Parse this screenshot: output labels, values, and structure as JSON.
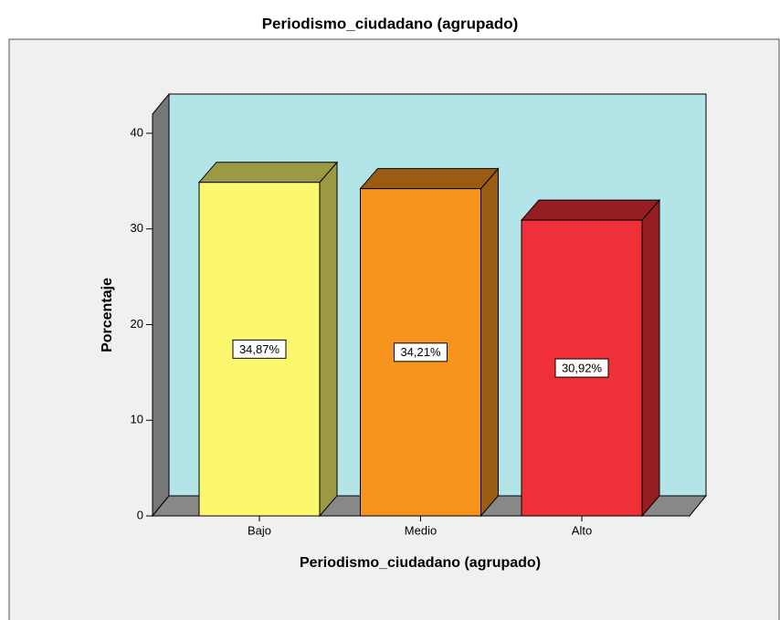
{
  "chart_data": {
    "type": "bar3d",
    "title": "Periodismo_ciudadano (agrupado)",
    "x_label": "Periodismo_ciudadano (agrupado)",
    "y_label": "Porcentaje",
    "categories": [
      "Bajo",
      "Medio",
      "Alto"
    ],
    "values": [
      34.87,
      34.21,
      30.92
    ],
    "value_labels": [
      "34,87%",
      "34,21%",
      "30,92%"
    ],
    "colors": [
      "#fbf76f",
      "#f7941d",
      "#ef3039"
    ],
    "ylim": [
      0,
      42
    ],
    "yticks": [
      0,
      10,
      20,
      30,
      40
    ],
    "grid": false
  }
}
